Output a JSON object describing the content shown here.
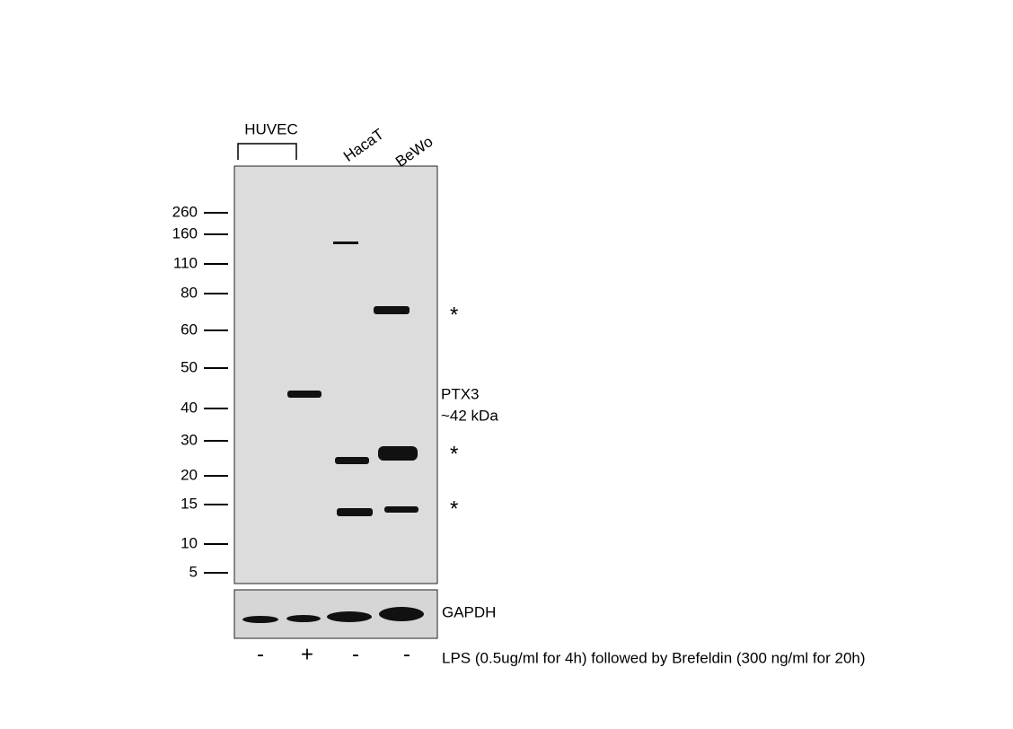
{
  "lanes": {
    "group": "HUVEC",
    "labels": [
      "HacaT",
      "BeWo"
    ]
  },
  "markers": [
    "260",
    "160",
    "110",
    "80",
    "60",
    "50",
    "40",
    "30",
    "20",
    "15",
    "10",
    "5"
  ],
  "annotations": {
    "target": "PTX3",
    "size": "~42  kDa",
    "stars": [
      "*",
      "*",
      "*"
    ]
  },
  "loading_control": "GAPDH",
  "treatment": {
    "signs": [
      "-",
      "+",
      "-",
      "-"
    ],
    "description": "LPS (0.5ug/ml  for 4h)  followed by Brefeldin (300 ng/ml for 20h)"
  }
}
